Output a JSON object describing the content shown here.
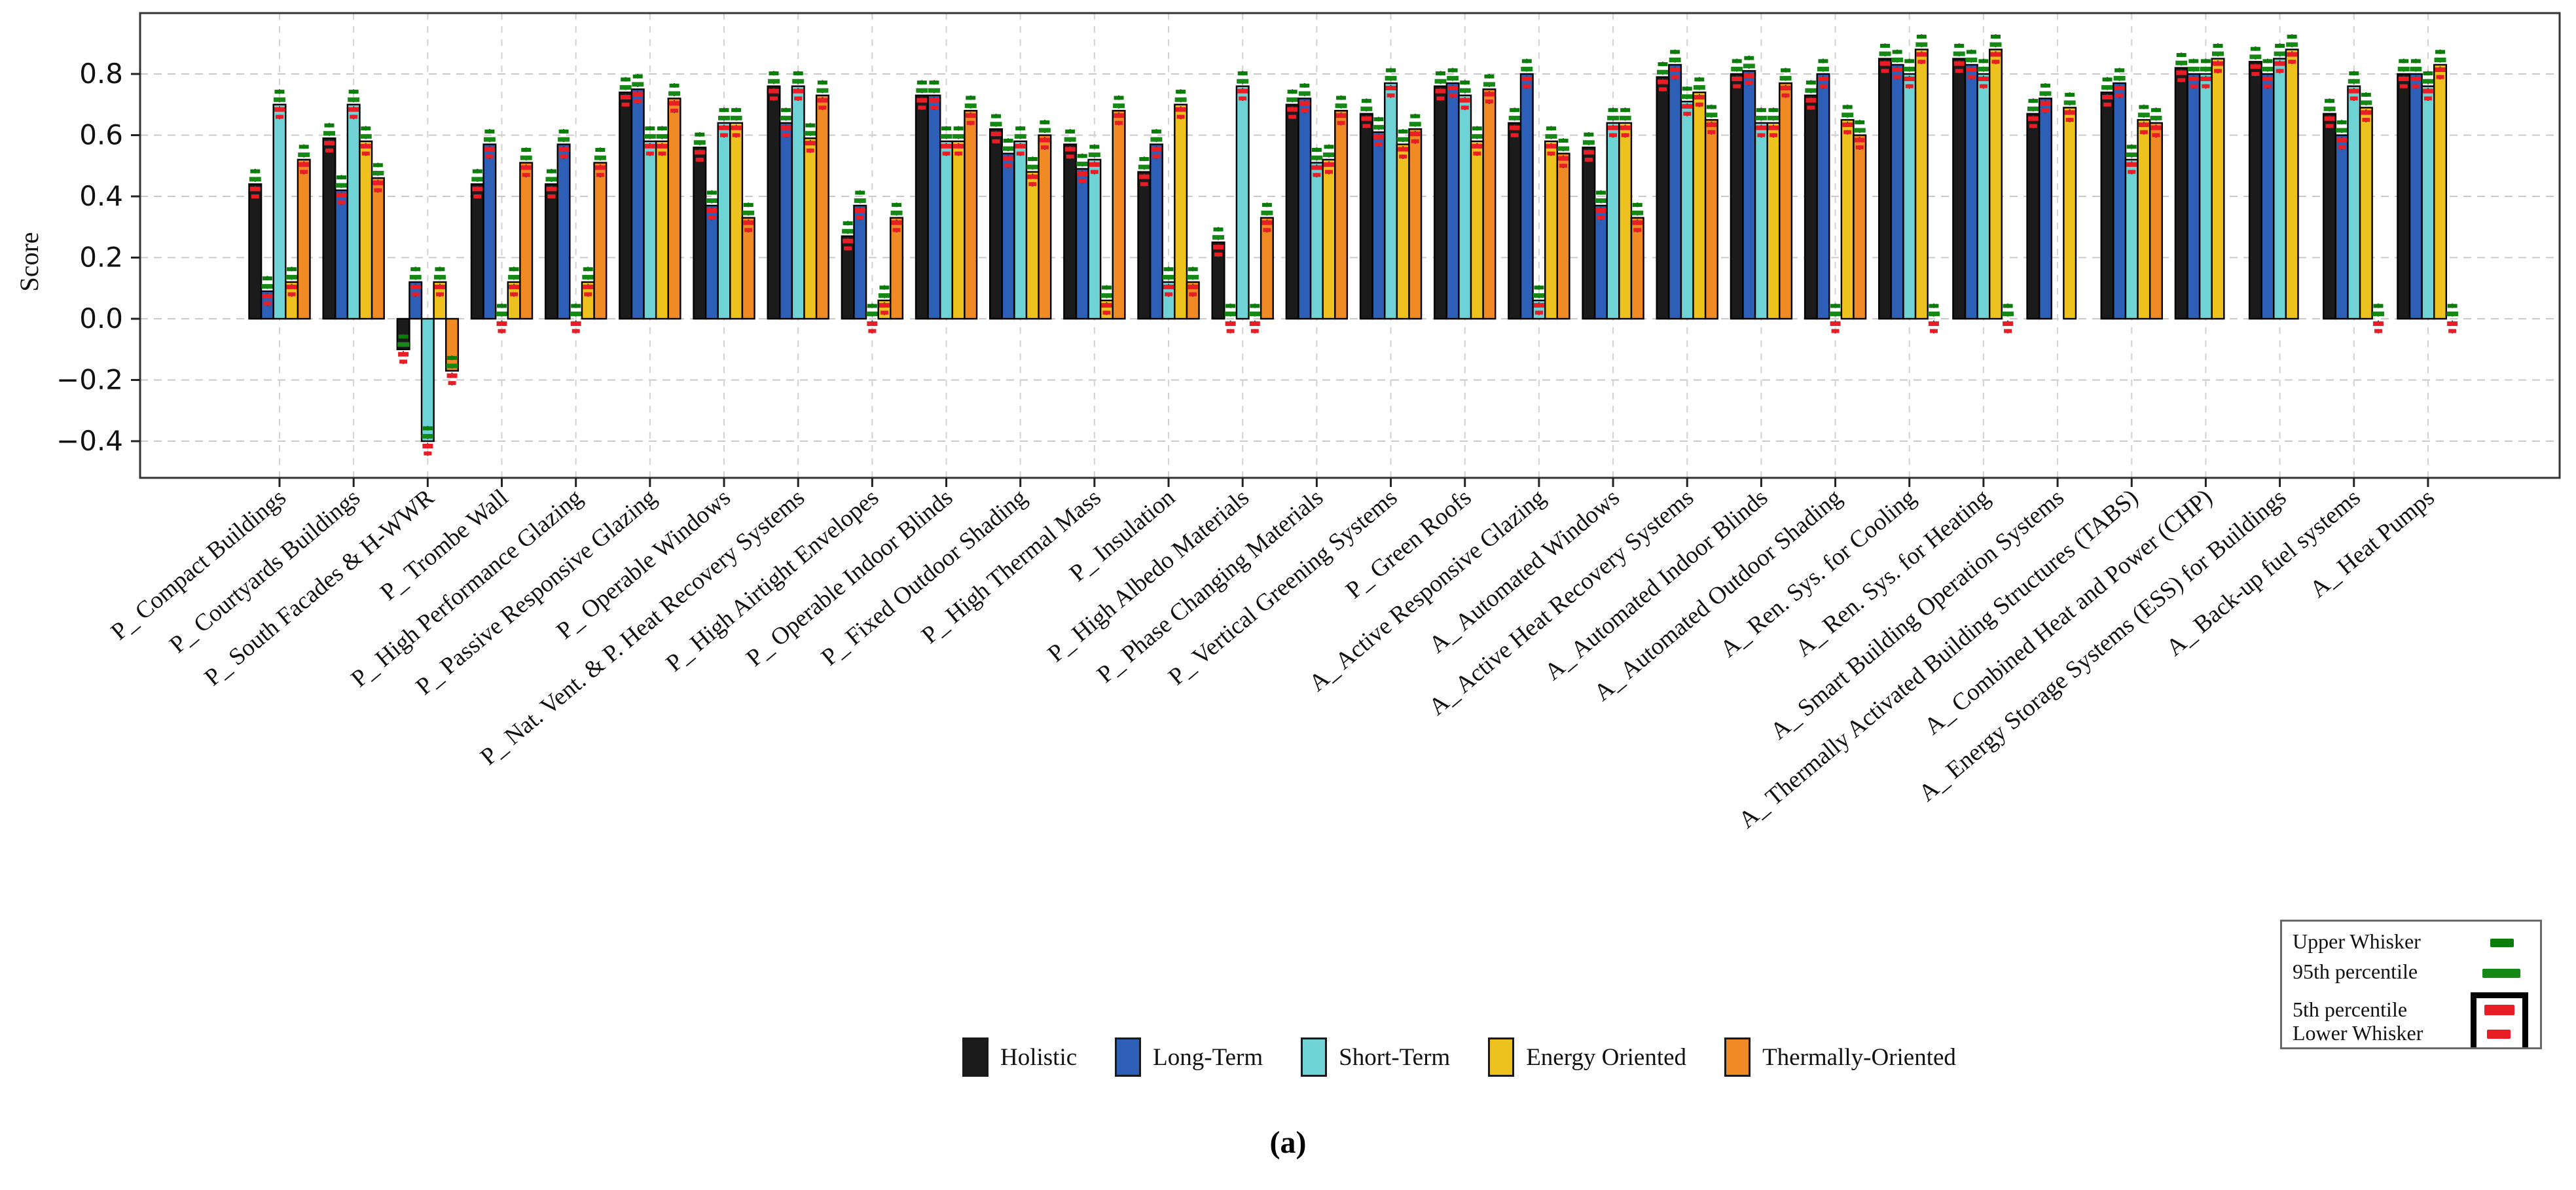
{
  "figure": {
    "caption": "(a)"
  },
  "y_axis": {
    "label": "Score",
    "tick_labels": [
      "0.8",
      "0.6",
      "0.4",
      "0.2",
      "0.0",
      "−0.2",
      "−0.4"
    ],
    "tick_values": [
      0.8,
      0.6,
      0.4,
      0.2,
      0.0,
      -0.2,
      -0.4
    ]
  },
  "whisker_legend": {
    "items": [
      {
        "label": "Upper Whisker",
        "marker": "green-dash-small"
      },
      {
        "label": "95th percentile",
        "marker": "green-dash-wide"
      },
      {
        "label": "5th percentile",
        "marker": "red-dash-wide"
      },
      {
        "label": "Lower Whisker",
        "marker": "red-dash-small"
      }
    ]
  },
  "chart_data": {
    "type": "bar",
    "title": "",
    "xlabel": "",
    "ylabel": "Score",
    "ylim": [
      -0.52,
      0.99
    ],
    "grid": true,
    "legend_position": "bottom",
    "categories": [
      "P_ Compact Buildings",
      "P_ Courtyards Buildings",
      "P_ South Facades & H-WWR",
      "P_ Trombe Wall",
      "P_ High Performance Glazing",
      "P_ Passive Responsive Glazing",
      "P_ Operable Windows",
      "P_ Nat. Vent. & P. Heat Recovery Systems",
      "P_ High Airtight Envelopes",
      "P_ Operable Indoor Blinds",
      "P_ Fixed Outdoor Shading",
      "P_ High Thermal Mass",
      "P_ Insulation",
      "P_ High Albedo Materials",
      "P_ Phase Changing Materials",
      "P_ Vertical Greening Systems",
      "P_ Green Roofs",
      "A_ Active Responsive Glazing",
      "A_ Automated Windows",
      "A_ Active Heat Recovery Systems",
      "A_ Automated Indoor Blinds",
      "A_ Automated Outdoor Shading",
      "A_ Ren. Sys. for Cooling",
      "A_ Ren. Sys. for Heating",
      "A_ Smart Building Operation Systems",
      "A_ Thermally Activated Building Structures (TABS)",
      "A_ Combined Heat and Power (CHP)",
      "A_ Energy Storage Systems (ESS) for Buildings",
      "A_ Back-up fuel systems",
      "A_ Heat Pumps"
    ],
    "series": [
      {
        "name": "Holistic",
        "color": "#1b1b1b",
        "values": [
          0.44,
          0.59,
          -0.1,
          0.44,
          0.44,
          0.74,
          0.56,
          0.76,
          0.27,
          0.73,
          0.62,
          0.57,
          0.48,
          0.25,
          0.7,
          0.67,
          0.76,
          0.64,
          0.56,
          0.79,
          0.8,
          0.73,
          0.85,
          0.85,
          0.67,
          0.74,
          0.82,
          0.84,
          0.67,
          0.8
        ]
      },
      {
        "name": "Long-Term",
        "color": "#2e5fb7",
        "values": [
          0.09,
          0.42,
          0.12,
          0.57,
          0.57,
          0.75,
          0.37,
          0.64,
          0.37,
          0.73,
          0.54,
          0.49,
          0.57,
          0.0,
          0.72,
          0.61,
          0.77,
          0.8,
          0.37,
          0.83,
          0.81,
          0.8,
          0.83,
          0.83,
          0.72,
          0.77,
          0.8,
          0.8,
          0.6,
          0.8
        ]
      },
      {
        "name": "Short-Term",
        "color": "#6fd3d5",
        "values": [
          0.7,
          0.7,
          -0.4,
          0.0,
          0.0,
          0.58,
          0.64,
          0.76,
          0.0,
          0.58,
          0.58,
          0.52,
          0.12,
          0.76,
          0.51,
          0.77,
          0.73,
          0.06,
          0.64,
          0.71,
          0.64,
          0.0,
          0.8,
          0.8,
          null,
          0.52,
          0.8,
          0.85,
          0.76,
          0.76
        ]
      },
      {
        "name": "Energy Oriented",
        "color": "#edc21f",
        "values": [
          0.12,
          0.58,
          0.12,
          0.12,
          0.12,
          0.58,
          0.64,
          0.59,
          0.06,
          0.58,
          0.48,
          0.06,
          0.7,
          0.0,
          0.52,
          0.57,
          0.58,
          0.58,
          0.64,
          0.74,
          0.64,
          0.65,
          0.88,
          0.88,
          0.69,
          0.65,
          0.85,
          0.88,
          0.69,
          0.83
        ]
      },
      {
        "name": "Thermally-Oriented",
        "color": "#ef8a24",
        "values": [
          0.52,
          0.46,
          -0.17,
          0.51,
          0.51,
          0.72,
          0.33,
          0.73,
          0.33,
          0.68,
          0.6,
          0.68,
          0.12,
          0.33,
          0.68,
          0.62,
          0.75,
          0.54,
          0.33,
          0.65,
          0.77,
          0.6,
          0.0,
          0.0,
          null,
          0.64,
          null,
          null,
          0.0,
          0.0
        ]
      }
    ],
    "whiskers": {
      "upper_color": "#0a7c0a",
      "p95_color": "#158815",
      "p5_color": "#e81d25",
      "lower_color": "#e81d25",
      "upper_offset": 0.042,
      "p95_offset": 0.016,
      "p5_offset": -0.016,
      "lower_offset": -0.04
    }
  }
}
